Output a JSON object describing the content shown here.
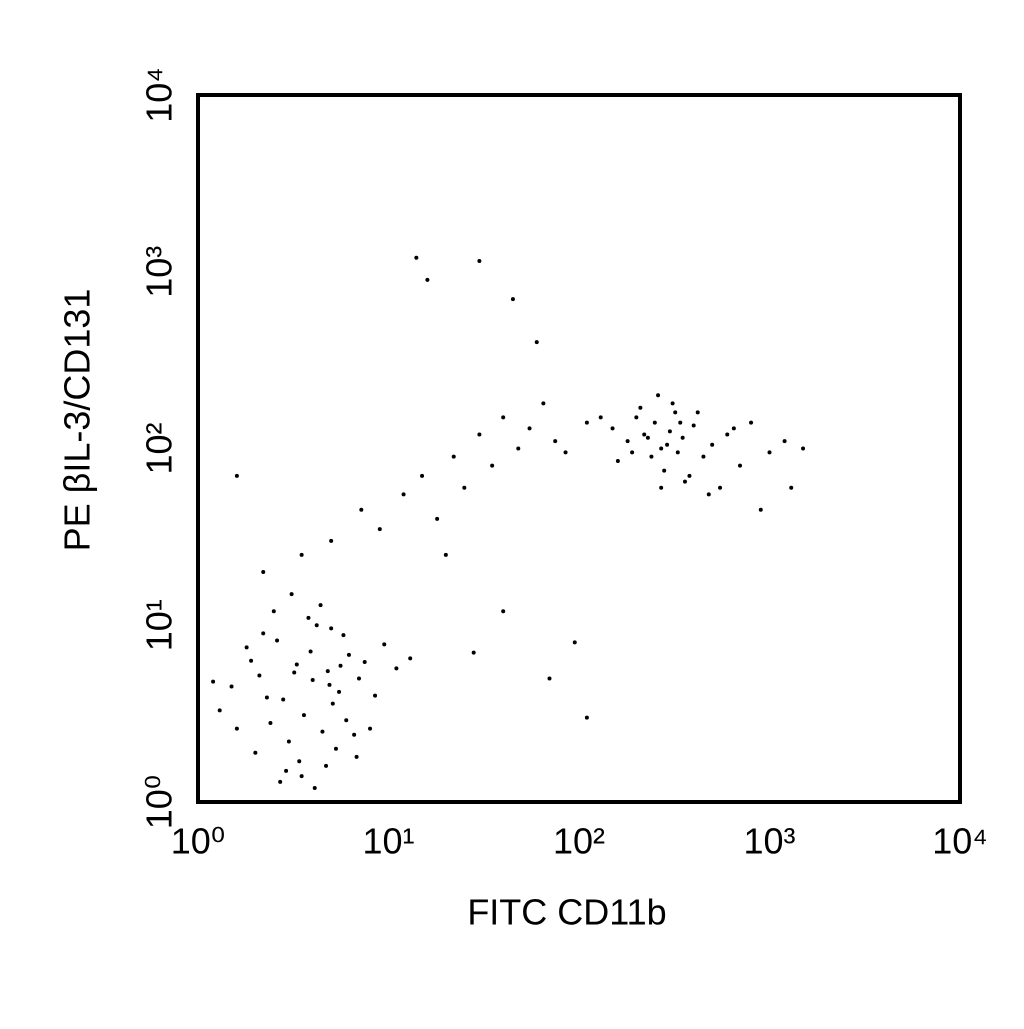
{
  "chart_data": {
    "type": "scatter",
    "x_label": "FITC CD11b",
    "y_label": "PE βIL-3/CD131",
    "xlim": [
      1,
      10000
    ],
    "ylim": [
      1,
      10000
    ],
    "xticks": [
      {
        "value": 1,
        "label": "10⁰"
      },
      {
        "value": 10,
        "label": "10¹"
      },
      {
        "value": 100,
        "label": "10²"
      },
      {
        "value": 1000,
        "label": "10³"
      },
      {
        "value": 10000,
        "label": "10⁴"
      }
    ],
    "yticks": [
      {
        "value": 1,
        "label": "10⁰"
      },
      {
        "value": 10,
        "label": "10¹"
      },
      {
        "value": 100,
        "label": "10²"
      },
      {
        "value": 1000,
        "label": "10³"
      },
      {
        "value": 10000,
        "label": "10⁴"
      }
    ],
    "log_scale": true,
    "grid": false,
    "color": "#000000",
    "x": [
      1.5,
      2.1,
      2.8,
      3.3,
      4.0,
      4.8,
      5.5,
      6.2,
      7.0,
      2.4,
      3.0,
      3.6,
      4.5,
      5.1,
      6.0,
      1.8,
      2.2,
      2.6,
      3.9,
      4.2,
      5.8,
      7.5,
      8.5,
      1.3,
      1.6,
      2.0,
      2.9,
      3.4,
      4.7,
      5.3,
      6.6,
      9.5,
      11,
      13,
      1.2,
      2.5,
      3.1,
      3.8,
      4.4,
      5.0,
      2.7,
      3.5,
      4.1,
      6.8,
      8.0,
      1.9,
      2.3,
      3.2,
      4.9,
      5.6,
      2.2,
      3.5,
      5.0,
      7.2,
      9.0,
      12,
      15,
      18,
      22,
      25,
      30,
      35,
      40,
      48,
      55,
      65,
      75,
      85,
      14,
      16,
      30,
      45,
      60,
      20,
      40,
      1.6,
      28,
      70,
      95,
      110,
      150,
      180,
      200,
      220,
      250,
      270,
      300,
      320,
      350,
      400,
      450,
      500,
      600,
      700,
      800,
      1000,
      1200,
      1500,
      130,
      160,
      210,
      240,
      260,
      280,
      310,
      330,
      380,
      420,
      550,
      650,
      230,
      290,
      340,
      190,
      270,
      360,
      480,
      900,
      1300,
      110
    ],
    "values": [
      4.5,
      5.2,
      3.8,
      6.0,
      4.9,
      5.5,
      4.2,
      6.8,
      5.0,
      2.8,
      2.2,
      3.1,
      2.5,
      3.6,
      2.9,
      7.5,
      9.0,
      8.2,
      7.1,
      10,
      8.8,
      6.2,
      4.0,
      3.3,
      2.6,
      1.9,
      1.5,
      1.7,
      1.6,
      2.0,
      2.4,
      7.8,
      5.7,
      6.5,
      4.8,
      12,
      15,
      11,
      13,
      9.6,
      1.3,
      1.4,
      1.2,
      1.8,
      2.6,
      6.3,
      3.9,
      5.4,
      4.6,
      5.9,
      20,
      25,
      30,
      45,
      35,
      55,
      70,
      40,
      90,
      60,
      120,
      80,
      150,
      100,
      130,
      180,
      110,
      95,
      1200,
      900,
      1150,
      700,
      400,
      25,
      12,
      70,
      7,
      5,
      8,
      3,
      130,
      110,
      150,
      120,
      140,
      100,
      125,
      160,
      115,
      135,
      90,
      105,
      120,
      80,
      140,
      95,
      110,
      100,
      150,
      85,
      170,
      90,
      200,
      75,
      180,
      95,
      70,
      160,
      60,
      130,
      115,
      105,
      140,
      95,
      60,
      65,
      55,
      45,
      60,
      140
    ]
  }
}
